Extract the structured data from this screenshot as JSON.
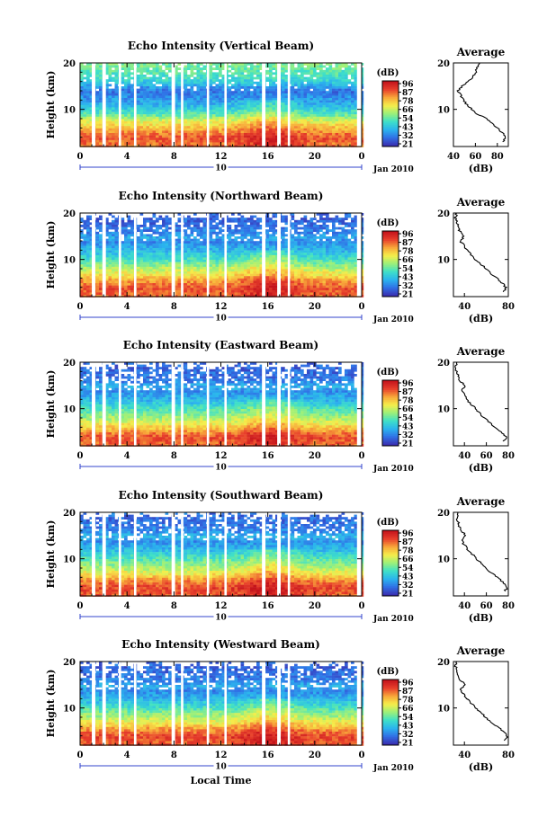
{
  "figure": {
    "x_axis_label": "Local Time",
    "date_label": "Jan 2010",
    "date_day": "10",
    "height_label": "Height (km)",
    "colorbar_unit": "(dB)",
    "average_title": "Average",
    "average_xlabel": "(dB)"
  },
  "colorbar_ticks": [
    "96",
    "87",
    "78",
    "66",
    "54",
    "43",
    "32",
    "21"
  ],
  "colors": {
    "colormap": [
      "#3a2eb0",
      "#3070e6",
      "#2bb4ee",
      "#3fe0c8",
      "#9bf07a",
      "#f5ee4a",
      "#f8a83a",
      "#e8402c",
      "#c4141c"
    ],
    "gap": "#ffffff",
    "axis": "#000000",
    "date_bracket": "#3344cc"
  },
  "chart_data": [
    {
      "type": "heatmap",
      "title": "Echo Intensity (Vertical Beam)",
      "xlabel": "",
      "ylabel": "Height (km)",
      "xlim": [
        0,
        24
      ],
      "ylim": [
        2,
        20
      ],
      "x_ticks": [
        "0",
        "4",
        "8",
        "12",
        "16",
        "20",
        "0"
      ],
      "y_ticks": [
        "20",
        "10"
      ],
      "value_range_db": [
        21,
        96
      ],
      "data_gaps_hours": [
        [
          1.0,
          1.3
        ],
        [
          1.9,
          2.2
        ],
        [
          3.3,
          3.5
        ],
        [
          4.6,
          4.8
        ],
        [
          7.8,
          8.1
        ],
        [
          8.6,
          8.8
        ],
        [
          10.8,
          11.0
        ],
        [
          12.3,
          12.5
        ],
        [
          15.5,
          15.8
        ],
        [
          16.8,
          17.1
        ],
        [
          17.7,
          17.9
        ],
        [
          23.6,
          24
        ]
      ],
      "average_profile": {
        "title": "Average",
        "xlabel": "(dB)",
        "xlim": [
          40,
          90
        ],
        "x_ticks": [
          "40",
          "60",
          "80"
        ],
        "ylim": [
          2,
          20
        ],
        "y_ticks": [
          "20",
          "10"
        ],
        "height_km": [
          3,
          4,
          5,
          6,
          7,
          8,
          9,
          10,
          11,
          12,
          13,
          14,
          15,
          16,
          17,
          18,
          19,
          20
        ],
        "db": [
          85,
          88,
          84,
          80,
          75,
          70,
          62,
          57,
          52,
          49,
          47,
          44,
          48,
          54,
          58,
          60,
          62,
          64
        ]
      }
    },
    {
      "type": "heatmap",
      "title": "Echo Intensity (Northward Beam)",
      "xlabel": "",
      "ylabel": "Height (km)",
      "xlim": [
        0,
        24
      ],
      "ylim": [
        2,
        20
      ],
      "x_ticks": [
        "0",
        "4",
        "8",
        "12",
        "16",
        "20",
        "0"
      ],
      "y_ticks": [
        "20",
        "10"
      ],
      "value_range_db": [
        21,
        96
      ],
      "data_gaps_hours": [
        [
          1.0,
          1.3
        ],
        [
          1.9,
          2.2
        ],
        [
          3.3,
          3.5
        ],
        [
          4.6,
          4.8
        ],
        [
          7.8,
          8.1
        ],
        [
          8.6,
          8.8
        ],
        [
          10.8,
          11.0
        ],
        [
          12.3,
          12.5
        ],
        [
          15.5,
          15.8
        ],
        [
          16.8,
          17.1
        ],
        [
          17.7,
          17.9
        ],
        [
          23.6,
          24
        ]
      ],
      "average_profile": {
        "title": "Average",
        "xlabel": "(dB)",
        "xlim": [
          30,
          80
        ],
        "x_ticks": [
          "40",
          "80"
        ],
        "ylim": [
          2,
          20
        ],
        "y_ticks": [
          "20",
          "10"
        ],
        "height_km": [
          3,
          4,
          5,
          6,
          7,
          8,
          9,
          10,
          11,
          12,
          13,
          14,
          15,
          16,
          17,
          18,
          19,
          20
        ],
        "db": [
          76,
          78,
          74,
          70,
          64,
          60,
          55,
          50,
          46,
          42,
          40,
          36,
          40,
          36,
          34,
          33,
          32,
          33
        ]
      }
    },
    {
      "type": "heatmap",
      "title": "Echo Intensity (Eastward Beam)",
      "xlabel": "",
      "ylabel": "Height (km)",
      "xlim": [
        0,
        24
      ],
      "ylim": [
        2,
        20
      ],
      "x_ticks": [
        "0",
        "4",
        "8",
        "12",
        "16",
        "20",
        "0"
      ],
      "y_ticks": [
        "20",
        "10"
      ],
      "value_range_db": [
        21,
        96
      ],
      "data_gaps_hours": [
        [
          1.0,
          1.3
        ],
        [
          1.9,
          2.2
        ],
        [
          3.3,
          3.5
        ],
        [
          4.6,
          4.8
        ],
        [
          7.8,
          8.1
        ],
        [
          8.6,
          8.8
        ],
        [
          10.8,
          11.0
        ],
        [
          12.3,
          12.5
        ],
        [
          15.5,
          15.8
        ],
        [
          16.8,
          17.1
        ],
        [
          17.7,
          17.9
        ],
        [
          23.6,
          24
        ]
      ],
      "average_profile": {
        "title": "Average",
        "xlabel": "(dB)",
        "xlim": [
          30,
          80
        ],
        "x_ticks": [
          "40",
          "60",
          "80"
        ],
        "ylim": [
          2,
          20
        ],
        "y_ticks": [
          "20",
          "10"
        ],
        "height_km": [
          3,
          4,
          5,
          6,
          7,
          8,
          9,
          10,
          11,
          12,
          13,
          14,
          15,
          16,
          17,
          18,
          19,
          20
        ],
        "db": [
          76,
          78,
          74,
          68,
          63,
          58,
          54,
          50,
          46,
          42,
          40,
          37,
          41,
          36,
          34,
          33,
          32,
          33
        ]
      }
    },
    {
      "type": "heatmap",
      "title": "Echo Intensity (Southward Beam)",
      "xlabel": "",
      "ylabel": "Height (km)",
      "xlim": [
        0,
        24
      ],
      "ylim": [
        2,
        20
      ],
      "x_ticks": [
        "0",
        "4",
        "8",
        "12",
        "16",
        "20",
        "0"
      ],
      "y_ticks": [
        "20",
        "10"
      ],
      "value_range_db": [
        21,
        96
      ],
      "data_gaps_hours": [
        [
          1.0,
          1.3
        ],
        [
          1.9,
          2.2
        ],
        [
          3.3,
          3.5
        ],
        [
          4.6,
          4.8
        ],
        [
          7.8,
          8.1
        ],
        [
          8.6,
          8.8
        ],
        [
          10.8,
          11.0
        ],
        [
          12.3,
          12.5
        ],
        [
          15.5,
          15.8
        ],
        [
          16.8,
          17.1
        ],
        [
          17.7,
          17.9
        ],
        [
          23.6,
          24
        ]
      ],
      "average_profile": {
        "title": "Average",
        "xlabel": "(dB)",
        "xlim": [
          30,
          80
        ],
        "x_ticks": [
          "40",
          "60",
          "80"
        ],
        "ylim": [
          2,
          20
        ],
        "y_ticks": [
          "20",
          "10"
        ],
        "height_km": [
          3,
          4,
          5,
          6,
          7,
          8,
          9,
          10,
          11,
          12,
          13,
          14,
          15,
          16,
          17,
          18,
          19,
          20
        ],
        "db": [
          77,
          79,
          75,
          70,
          64,
          59,
          55,
          51,
          47,
          43,
          40,
          37,
          42,
          37,
          35,
          34,
          33,
          34
        ]
      }
    },
    {
      "type": "heatmap",
      "title": "Echo Intensity (Westward Beam)",
      "xlabel": "Local Time",
      "ylabel": "Height (km)",
      "xlim": [
        0,
        24
      ],
      "ylim": [
        2,
        20
      ],
      "x_ticks": [
        "0",
        "4",
        "8",
        "12",
        "16",
        "20",
        "0"
      ],
      "y_ticks": [
        "20",
        "10"
      ],
      "value_range_db": [
        21,
        96
      ],
      "data_gaps_hours": [
        [
          1.0,
          1.3
        ],
        [
          1.9,
          2.2
        ],
        [
          3.3,
          3.5
        ],
        [
          4.6,
          4.8
        ],
        [
          7.8,
          8.1
        ],
        [
          8.6,
          8.8
        ],
        [
          10.8,
          11.0
        ],
        [
          12.3,
          12.5
        ],
        [
          15.5,
          15.8
        ],
        [
          16.8,
          17.1
        ],
        [
          17.7,
          17.9
        ],
        [
          23.6,
          24
        ]
      ],
      "average_profile": {
        "title": "Average",
        "xlabel": "(dB)",
        "xlim": [
          30,
          80
        ],
        "x_ticks": [
          "40",
          "80"
        ],
        "ylim": [
          2,
          20
        ],
        "y_ticks": [
          "20",
          "10"
        ],
        "height_km": [
          3,
          4,
          5,
          6,
          7,
          8,
          9,
          10,
          11,
          12,
          13,
          14,
          15,
          16,
          17,
          18,
          19,
          20
        ],
        "db": [
          77,
          79,
          75,
          70,
          64,
          59,
          55,
          50,
          46,
          42,
          39,
          36,
          41,
          36,
          34,
          33,
          32,
          33
        ]
      }
    }
  ]
}
